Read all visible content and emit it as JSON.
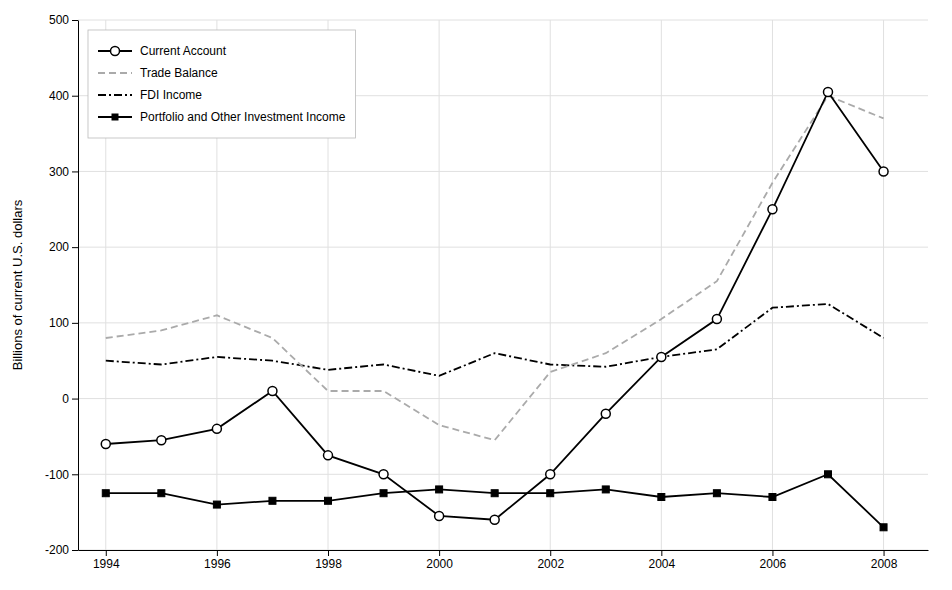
{
  "chart_data": {
    "type": "line",
    "x": [
      1994,
      1995,
      1996,
      1997,
      1998,
      1999,
      2000,
      2001,
      2002,
      2003,
      2004,
      2005,
      2006,
      2007,
      2008
    ],
    "series": [
      {
        "name": "Current Account",
        "color": "#000000",
        "line_style": "solid",
        "marker": "circle",
        "values": [
          -60,
          -55,
          -40,
          10,
          -75,
          -100,
          -155,
          -160,
          -100,
          -20,
          55,
          105,
          250,
          405,
          300
        ]
      },
      {
        "name": "Trade Balance",
        "color": "#aaaaaa",
        "line_style": "dashed",
        "values": [
          80,
          90,
          110,
          80,
          10,
          10,
          -35,
          -55,
          35,
          60,
          105,
          155,
          285,
          400,
          370
        ]
      },
      {
        "name": "FDI Income",
        "color": "#000000",
        "line_style": "dashdot",
        "values": [
          50,
          45,
          55,
          50,
          38,
          45,
          30,
          60,
          45,
          42,
          55,
          65,
          120,
          125,
          80
        ]
      },
      {
        "name": "Portfolio and Other Investment Income",
        "color": "#000000",
        "line_style": "solid",
        "marker": "square",
        "values": [
          -125,
          -125,
          -140,
          -135,
          -135,
          -125,
          -120,
          -125,
          -125,
          -120,
          -130,
          -125,
          -130,
          -100,
          -170
        ]
      }
    ],
    "ylabel": "Billions of current U.S. dollars",
    "xlim": [
      1993.5,
      2008.8
    ],
    "xticks": [
      1994,
      1996,
      1998,
      2000,
      2002,
      2004,
      2006,
      2008
    ],
    "ylim": [
      -200,
      500
    ],
    "yticks": [
      -200,
      -100,
      0,
      100,
      200,
      300,
      400,
      500
    ],
    "grid": true,
    "legend": "upper left"
  }
}
